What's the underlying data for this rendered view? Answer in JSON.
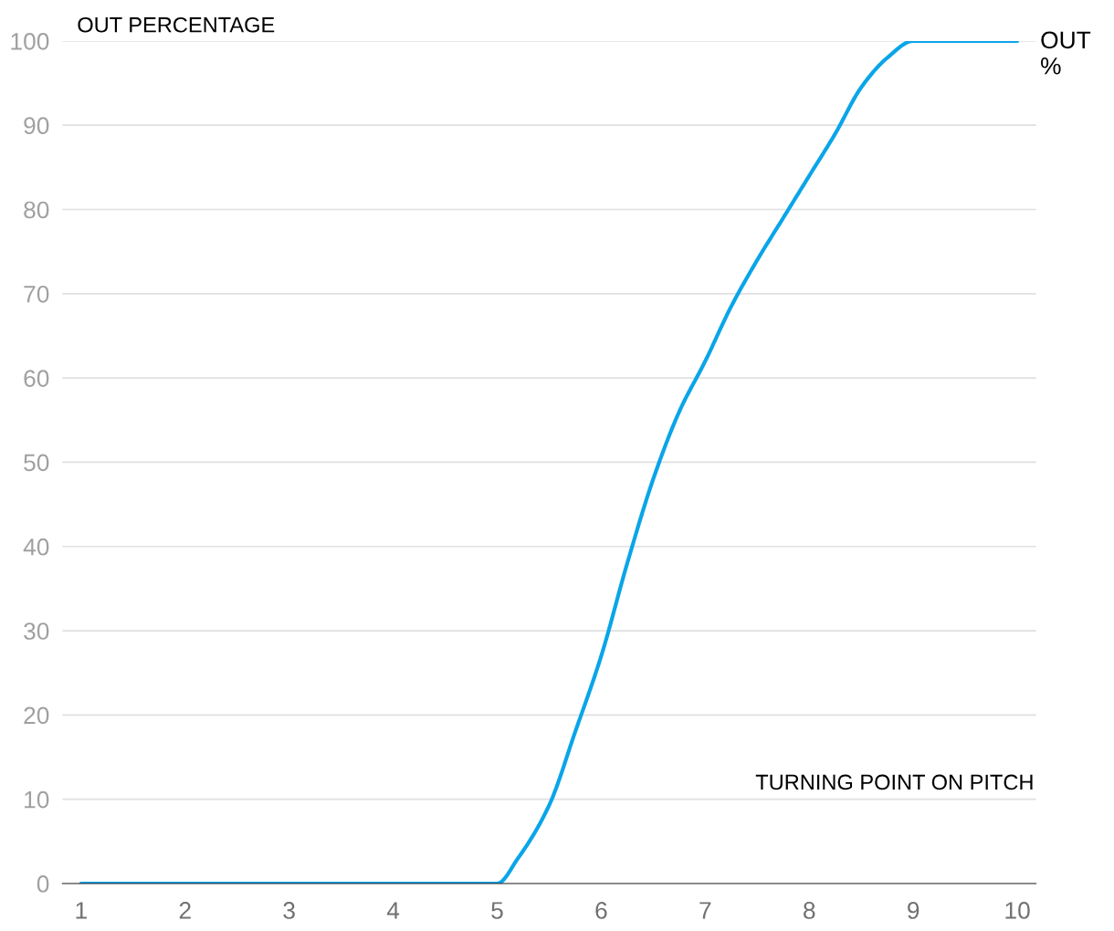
{
  "chart_data": {
    "type": "line",
    "ylabel": "OUT PERCENTAGE",
    "xlabel": "TURNING POINT ON PITCH",
    "x": [
      1,
      2,
      3,
      4,
      5,
      5.2,
      5.5,
      5.75,
      6,
      6.25,
      6.5,
      6.75,
      7,
      7.25,
      7.5,
      7.75,
      8,
      8.25,
      8.5,
      8.75,
      9,
      10
    ],
    "series": [
      {
        "name": "OUT %",
        "color": "#0aa5e8",
        "values": [
          0,
          0,
          0,
          0,
          0,
          3,
          9.3,
          18,
          27,
          38,
          48,
          56,
          62,
          68.5,
          74,
          79,
          84,
          89,
          94.5,
          98,
          100,
          100
        ]
      }
    ],
    "xlim": [
      0.82,
      10.18
    ],
    "xticks": [
      1,
      2,
      3,
      4,
      5,
      6,
      7,
      8,
      9,
      10
    ],
    "ylim": [
      0,
      100
    ],
    "yticks": [
      0,
      10,
      20,
      30,
      40,
      50,
      60,
      70,
      80,
      90,
      100
    ],
    "grid": "y",
    "legend": false,
    "marker": "none",
    "line_style": "solid"
  }
}
